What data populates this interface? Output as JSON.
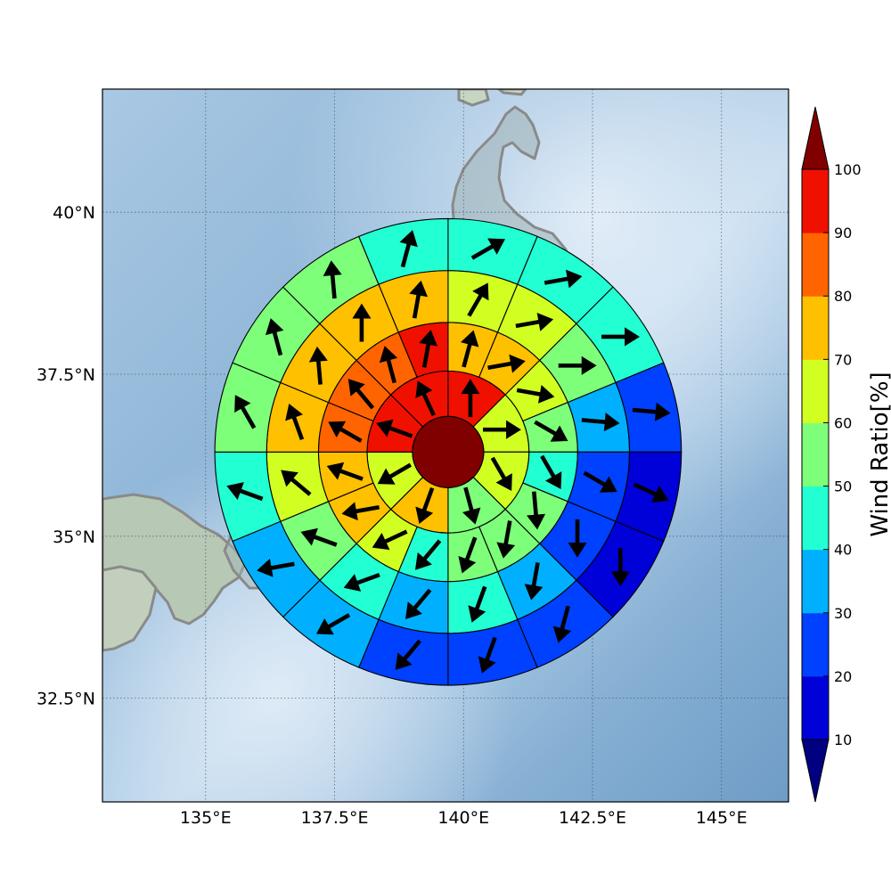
{
  "map": {
    "axes": {
      "lon_range": [
        133.0,
        146.3
      ],
      "lat_range": [
        30.9,
        41.9
      ],
      "lon_ticks": [
        {
          "value": 135.0,
          "label": "135°E"
        },
        {
          "value": 137.5,
          "label": "137.5°E"
        },
        {
          "value": 140.0,
          "label": "140°E"
        },
        {
          "value": 142.5,
          "label": "142.5°E"
        },
        {
          "value": 145.0,
          "label": "145°E"
        }
      ],
      "lat_ticks": [
        {
          "value": 40.0,
          "label": "40°N"
        },
        {
          "value": 37.5,
          "label": "37.5°N"
        },
        {
          "value": 35.0,
          "label": "35°N"
        },
        {
          "value": 32.5,
          "label": "32.5°N"
        }
      ],
      "grid": true
    },
    "colorbar": {
      "label": "Wind Ratio[%]",
      "bounds": [
        10,
        20,
        30,
        40,
        50,
        60,
        70,
        80,
        90,
        100
      ],
      "tick_labels": [
        "10",
        "20",
        "30",
        "40",
        "50",
        "60",
        "70",
        "80",
        "90",
        "100"
      ],
      "colors": [
        "#0000d9",
        "#0040ff",
        "#00b0ff",
        "#22ffd2",
        "#7dff7a",
        "#d2ff22",
        "#ffc000",
        "#ff6400",
        "#f01000"
      ],
      "under_color": "#000080",
      "over_color": "#800000",
      "extend": "both"
    },
    "polar_grid": {
      "center_lonlat": [
        139.7,
        36.3
      ],
      "center_value": 100,
      "ring_radii_deg": [
        0.55,
        1.25,
        2.0,
        2.8,
        3.6
      ],
      "sectors_per_ring": [
        8,
        16,
        16,
        16
      ]
    },
    "rings": [
      {
        "values": [
          95,
          65,
          62,
          55,
          75,
          65,
          92,
          95
        ],
        "wind_dir_deg": [
          0,
          90,
          150,
          165,
          200,
          240,
          290,
          335
        ]
      },
      {
        "values": [
          75,
          75,
          65,
          55,
          45,
          55,
          55,
          50,
          45,
          65,
          75,
          75,
          85,
          85,
          85,
          90
        ],
        "wind_dir_deg": [
          15,
          80,
          100,
          120,
          150,
          175,
          190,
          200,
          220,
          245,
          260,
          290,
          300,
          320,
          345,
          10
        ]
      },
      {
        "values": [
          65,
          65,
          55,
          35,
          25,
          25,
          35,
          45,
          35,
          45,
          55,
          65,
          75,
          75,
          75,
          75
        ],
        "wind_dir_deg": [
          30,
          80,
          90,
          95,
          120,
          180,
          190,
          200,
          220,
          250,
          290,
          310,
          340,
          355,
          0,
          10
        ],
        "dir_note": "outer-middle ring"
      },
      {
        "values": [
          45,
          45,
          45,
          25,
          15,
          15,
          25,
          25,
          25,
          35,
          35,
          45,
          55,
          55,
          55,
          45
        ],
        "wind_dir_deg": [
          60,
          80,
          90,
          95,
          115,
          180,
          195,
          200,
          220,
          240,
          260,
          290,
          330,
          345,
          355,
          15
        ]
      }
    ]
  }
}
